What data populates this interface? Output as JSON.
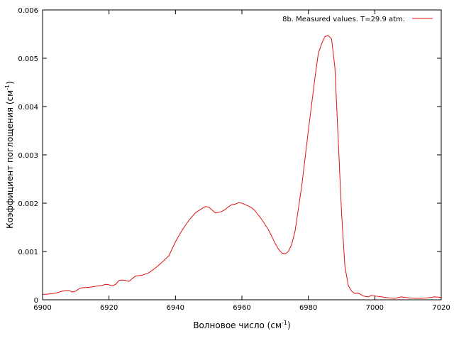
{
  "chart_data": {
    "type": "line",
    "title": "",
    "xlabel": "Волновое число (см",
    "xlabel_sup": "-1",
    "xlabel_end": ")",
    "ylabel": "Коэффициент поглощения (см",
    "ylabel_sup": "-1",
    "ylabel_end": ")",
    "xlim": [
      6900,
      7020
    ],
    "ylim": [
      0,
      0.006
    ],
    "x_ticks": [
      6900,
      6920,
      6940,
      6960,
      6980,
      7000,
      7020
    ],
    "x_tick_labels": [
      "6900",
      "6920",
      "6940",
      "6960",
      "6980",
      "7000",
      "7020"
    ],
    "y_ticks": [
      0,
      0.001,
      0.002,
      0.003,
      0.004,
      0.005,
      0.006
    ],
    "y_tick_labels": [
      "0",
      "0.001",
      "0.002",
      "0.003",
      "0.004",
      "0.005",
      "0.006"
    ],
    "grid": false,
    "legend_position": "top-right",
    "series": [
      {
        "name": "8b. Measured values. T=29.9 atm.",
        "color": "#e01010",
        "x": [
          6900,
          6902,
          6904,
          6906,
          6907,
          6908,
          6909,
          6910,
          6911,
          6912,
          6914,
          6916,
          6918,
          6919,
          6920,
          6921,
          6922,
          6923,
          6924,
          6925,
          6926,
          6927,
          6928,
          6929,
          6930,
          6932,
          6934,
          6936,
          6938,
          6940,
          6942,
          6944,
          6946,
          6948,
          6949,
          6950,
          6951,
          6952,
          6953,
          6954,
          6955,
          6956,
          6957,
          6958,
          6959,
          6960,
          6961,
          6962,
          6963,
          6964,
          6966,
          6968,
          6970,
          6971,
          6972,
          6973,
          6974,
          6975,
          6976,
          6978,
          6980,
          6982,
          6983,
          6984,
          6985,
          6986,
          6987,
          6988,
          6989,
          6990,
          6991,
          6992,
          6993,
          6994,
          6995,
          6996,
          6997,
          6998,
          6999,
          7000,
          7002,
          7004,
          7006,
          7008,
          7010,
          7012,
          7014,
          7016,
          7018,
          7020
        ],
        "y": [
          0.00011,
          0.00012,
          0.00014,
          0.00018,
          0.00019,
          0.00019,
          0.00016,
          0.00018,
          0.00023,
          0.00025,
          0.00026,
          0.00028,
          0.0003,
          0.00032,
          0.00031,
          0.00029,
          0.00032,
          0.0004,
          0.00041,
          0.0004,
          0.00038,
          0.00044,
          0.00049,
          0.0005,
          0.00051,
          0.00056,
          0.00066,
          0.00078,
          0.00091,
          0.0012,
          0.00144,
          0.00164,
          0.0018,
          0.00189,
          0.00193,
          0.00192,
          0.00186,
          0.0018,
          0.00181,
          0.00183,
          0.00187,
          0.00193,
          0.00197,
          0.00198,
          0.00201,
          0.002,
          0.00197,
          0.00194,
          0.0019,
          0.00184,
          0.00166,
          0.00145,
          0.00117,
          0.00105,
          0.00097,
          0.00095,
          0.001,
          0.00115,
          0.00142,
          0.00235,
          0.0035,
          0.0046,
          0.0051,
          0.0053,
          0.00545,
          0.00547,
          0.0054,
          0.0048,
          0.0033,
          0.0018,
          0.0007,
          0.0003,
          0.00018,
          0.00013,
          0.00014,
          0.0001,
          7e-05,
          6e-05,
          9e-05,
          8e-05,
          6e-05,
          4e-05,
          3e-05,
          6e-05,
          4e-05,
          3e-05,
          3e-05,
          4e-05,
          6e-05,
          5e-05
        ]
      }
    ]
  }
}
